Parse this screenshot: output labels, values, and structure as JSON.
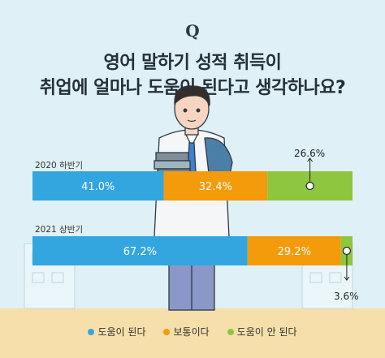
{
  "header": {
    "q_mark": "Q",
    "title_line1": "영어 말하기 성적 취득이",
    "title_line2": "취업에 얼마나 도움이 된다고 생각하나요?"
  },
  "colors": {
    "helpful": "#33a6e0",
    "neutral": "#f39b0b",
    "not_helpful": "#8ec63f",
    "background": "#dff1f6",
    "floor": "#f6dfaa"
  },
  "chart_data": {
    "type": "bar",
    "orientation": "horizontal",
    "stacked": true,
    "percent": true,
    "categories": [
      "2020 하반기",
      "2021 상반기"
    ],
    "series": [
      {
        "name": "도움이 된다",
        "values": [
          41.0,
          67.2
        ],
        "labels": [
          "41.0%",
          "67.2%"
        ]
      },
      {
        "name": "보통이다",
        "values": [
          32.4,
          29.2
        ],
        "labels": [
          "32.4%",
          "29.2%"
        ]
      },
      {
        "name": "도움이 안 된다",
        "values": [
          26.6,
          3.6
        ],
        "labels": [
          "26.6%",
          "3.6%"
        ]
      }
    ],
    "legend_position": "bottom",
    "grid": false
  }
}
